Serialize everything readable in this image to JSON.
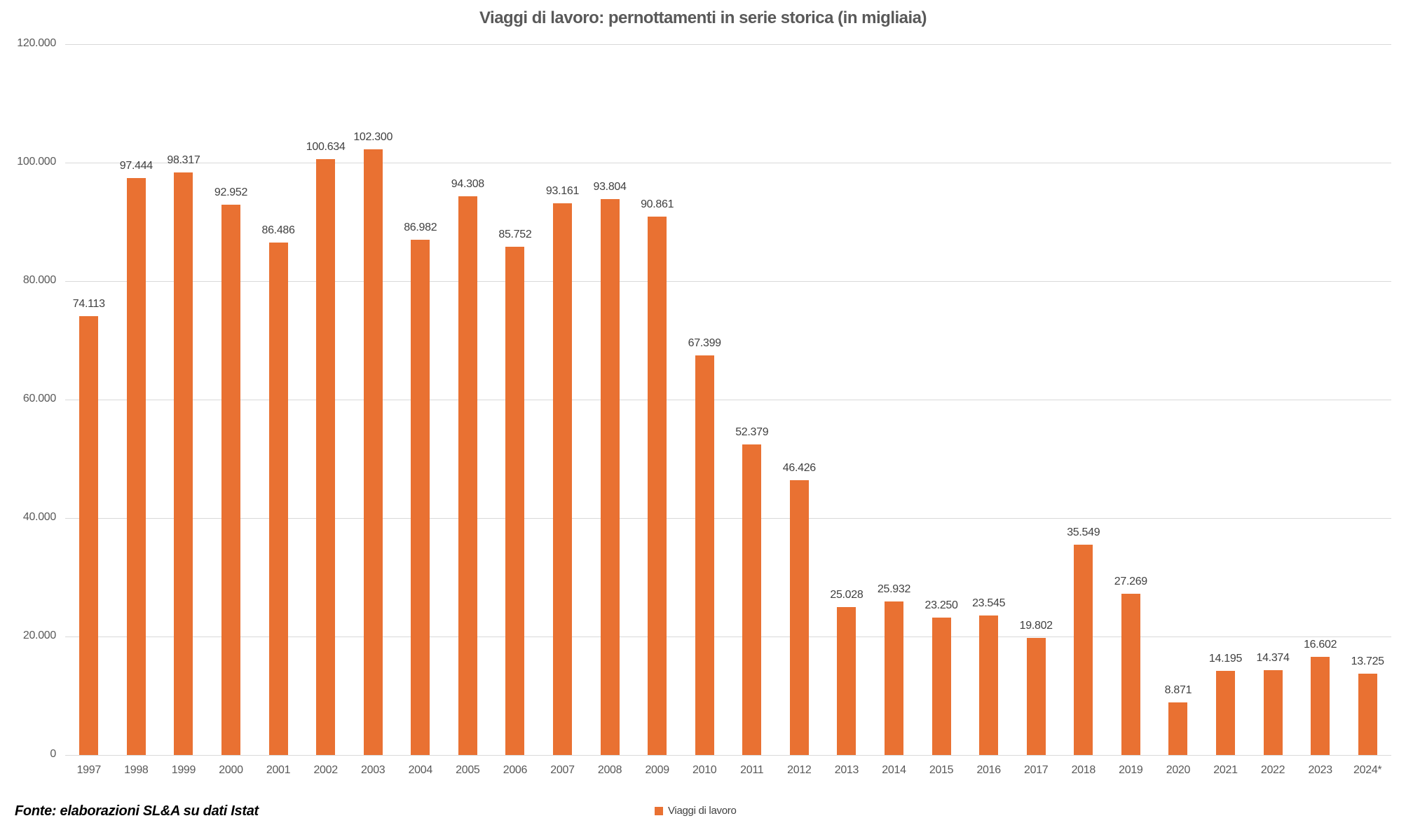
{
  "chart_data": {
    "type": "bar",
    "title": "Viaggi di lavoro: pernottamenti in serie storica (in migliaia)",
    "legend": "Viaggi di lavoro",
    "legend_position": "bottom-center",
    "source": "Fonte: elaborazioni SL&A su dati Istat",
    "categories": [
      "1997",
      "1998",
      "1999",
      "2000",
      "2001",
      "2002",
      "2003",
      "2004",
      "2005",
      "2006",
      "2007",
      "2008",
      "2009",
      "2010",
      "2011",
      "2012",
      "2013",
      "2014",
      "2015",
      "2016",
      "2017",
      "2018",
      "2019",
      "2020",
      "2021",
      "2022",
      "2023",
      "2024*"
    ],
    "values": [
      74113,
      97444,
      98317,
      92952,
      86486,
      100634,
      102300,
      86982,
      94308,
      85752,
      93161,
      93804,
      90861,
      67399,
      52379,
      46426,
      25028,
      25932,
      23250,
      23545,
      19802,
      35549,
      27269,
      8871,
      14195,
      14374,
      16602,
      13725
    ],
    "value_labels": [
      "74.113",
      "97.444",
      "98.317",
      "92.952",
      "86.486",
      "100.634",
      "102.300",
      "86.982",
      "94.308",
      "85.752",
      "93.161",
      "93.804",
      "90.861",
      "67.399",
      "52.379",
      "46.426",
      "25.028",
      "25.932",
      "23.250",
      "23.545",
      "19.802",
      "35.549",
      "27.269",
      "8.871",
      "14.195",
      "14.374",
      "16.602",
      "13.725"
    ],
    "xlabel": "",
    "ylabel": "",
    "ylim": [
      0,
      120000
    ],
    "ytick_step": 20000,
    "ytick_labels": [
      "0",
      "20.000",
      "40.000",
      "60.000",
      "80.000",
      "100.000",
      "120.000"
    ],
    "grid": "horizontal",
    "colors": {
      "bar": "#E97132",
      "grid": "#d9d9d9",
      "axis_text": "#595959",
      "data_label": "#404040",
      "title": "#595959",
      "source_text": "#000000"
    }
  }
}
